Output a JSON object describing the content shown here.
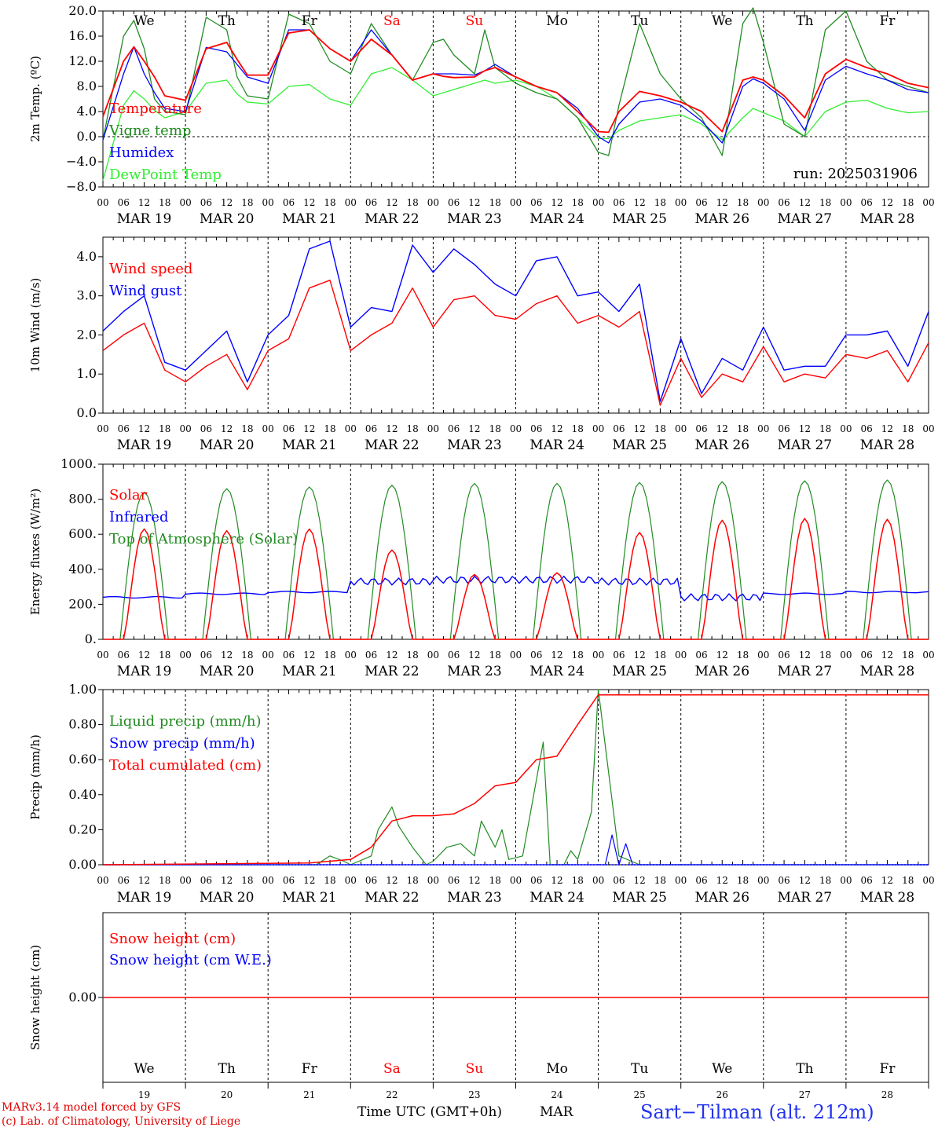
{
  "days": [
    "We",
    "Th",
    "Fr",
    "Sa",
    "Su",
    "Mo",
    "Tu",
    "We",
    "Th",
    "Fr"
  ],
  "weekend_flags": [
    false,
    false,
    false,
    true,
    true,
    false,
    false,
    false,
    false,
    false
  ],
  "dates": [
    "MAR 19",
    "MAR 20",
    "MAR 21",
    "MAR 22",
    "MAR 23",
    "MAR 24",
    "MAR 25",
    "MAR 26",
    "MAR 27",
    "MAR 28"
  ],
  "day_numbers": [
    "19",
    "20",
    "21",
    "22",
    "23",
    "24",
    "25",
    "26",
    "27",
    "28"
  ],
  "hour_labels": [
    "00",
    "06",
    "12",
    "18"
  ],
  "colors": {
    "red": "#ff0000",
    "darkgreen": "#228b22",
    "blue": "#0000ff",
    "lightgreen": "#33ee33",
    "weekend": "#ff0000"
  },
  "footer": {
    "model": "MARv3.14 model forced by GFS",
    "lab": "(c) Lab. of Climatology, University of Liege",
    "axis": "Time UTC (GMT+0h)",
    "month": "MAR",
    "station": "Sart−Tilman (alt. 212m)"
  },
  "chart_data": [
    {
      "type": "line",
      "ylabel": "2m Temp. (ºC)",
      "ylim": [
        -8,
        20
      ],
      "yticks": [
        "20.0",
        "16.0",
        "12.0",
        "8.0",
        "4.0",
        "0.0",
        "−4.0",
        "−8.0"
      ],
      "annotation": "run: 2025031906",
      "zero_line": true,
      "x_hours": [
        0,
        6,
        9,
        12,
        15,
        18,
        24,
        30,
        36,
        39,
        42,
        48,
        54,
        60,
        66,
        72,
        78,
        84,
        90,
        96,
        99,
        102,
        108,
        111,
        114,
        120,
        126,
        132,
        138,
        144,
        147,
        150,
        156,
        162,
        168,
        174,
        180,
        186,
        189,
        192,
        198,
        204,
        210,
        216,
        222,
        228,
        234,
        240
      ],
      "series": [
        {
          "name": "Temperature",
          "color": "red",
          "values": [
            3.2,
            12,
            14.3,
            12,
            9.5,
            6.5,
            5.8,
            14,
            15,
            12.3,
            9.8,
            9.8,
            16.5,
            17,
            14,
            12,
            15.5,
            13,
            9,
            10,
            9.6,
            9.4,
            9.5,
            10.5,
            11,
            9.5,
            8,
            7,
            4,
            0.8,
            0.7,
            4,
            7.2,
            6.5,
            5.5,
            4,
            0.8,
            9,
            9.5,
            9,
            6.5,
            3,
            10,
            12.3,
            11,
            10,
            8.5,
            7.8
          ]
        },
        {
          "name": "Vigne temp",
          "color": "darkgreen",
          "values": [
            -0.5,
            16,
            18.5,
            14,
            6,
            4,
            3.5,
            19,
            17,
            9.5,
            6.5,
            6,
            19.5,
            18,
            12,
            10,
            18,
            13,
            9,
            15,
            15.5,
            13,
            10,
            17,
            11,
            8.5,
            7,
            6,
            3,
            -2.5,
            -3,
            5,
            18,
            10,
            6,
            3,
            -3,
            18,
            20.5,
            15,
            2,
            0,
            17,
            20,
            12,
            9,
            8,
            7
          ]
        },
        {
          "name": "Humidex",
          "color": "blue",
          "values": [
            -0.5,
            10,
            14.3,
            10,
            7,
            4.5,
            4,
            14.2,
            13.5,
            11.5,
            9.5,
            8.5,
            17,
            17,
            14,
            12,
            17,
            13,
            9,
            10,
            10,
            10,
            9.8,
            10.5,
            11.5,
            9.5,
            8,
            7,
            4.5,
            0,
            -1,
            2,
            5.5,
            6,
            5,
            2.5,
            -1,
            8,
            9.2,
            8.5,
            6,
            1,
            9,
            11.2,
            10,
            9,
            7.5,
            7
          ]
        },
        {
          "name": "DewPoint Temp",
          "color": "lightgreen",
          "values": [
            -7,
            5,
            7.3,
            6,
            4.2,
            3,
            4,
            8.5,
            9,
            6.8,
            5.5,
            5.2,
            8,
            8.3,
            6,
            5,
            10,
            11,
            9,
            6.5,
            7,
            7.5,
            8.5,
            9,
            8.5,
            9,
            8,
            6,
            3,
            -0.3,
            -0.3,
            1,
            2.5,
            3,
            3.5,
            2,
            -0.5,
            3,
            4.5,
            3.8,
            2.5,
            0,
            4,
            5.5,
            5.8,
            4.5,
            3.8,
            4
          ]
        }
      ]
    },
    {
      "type": "line",
      "ylabel": "10m Wind (m/s)",
      "ylim": [
        0,
        4.5
      ],
      "yticks": [
        "4.0",
        "3.0",
        "2.0",
        "1.0",
        "0.0"
      ],
      "x_hours": [
        0,
        6,
        12,
        18,
        24,
        30,
        36,
        42,
        48,
        54,
        60,
        66,
        72,
        78,
        84,
        90,
        96,
        102,
        108,
        114,
        120,
        126,
        132,
        138,
        144,
        150,
        156,
        162,
        168,
        174,
        180,
        186,
        192,
        198,
        204,
        210,
        216,
        222,
        228,
        234,
        240
      ],
      "series": [
        {
          "name": "Wind speed",
          "color": "red",
          "values": [
            1.6,
            2,
            2.3,
            1.1,
            0.8,
            1.2,
            1.5,
            0.6,
            1.6,
            1.9,
            3.2,
            3.4,
            1.6,
            2,
            2.3,
            3.2,
            2.2,
            2.9,
            3,
            2.5,
            2.4,
            2.8,
            3,
            2.3,
            2.5,
            2.2,
            2.6,
            0.2,
            1.4,
            0.4,
            1,
            0.8,
            1.7,
            0.8,
            1,
            0.9,
            1.5,
            1.4,
            1.6,
            0.8,
            1.8
          ]
        },
        {
          "name": "Wind gust",
          "color": "blue",
          "values": [
            2.1,
            2.6,
            3,
            1.3,
            1.1,
            1.6,
            2.1,
            0.8,
            2,
            2.5,
            4.2,
            4.4,
            2.2,
            2.7,
            2.6,
            4.3,
            3.6,
            4.2,
            3.8,
            3.3,
            3,
            3.9,
            4,
            3,
            3.1,
            2.6,
            3.3,
            0.3,
            1.9,
            0.5,
            1.4,
            1.1,
            2.2,
            1.1,
            1.2,
            1.2,
            2,
            2,
            2.1,
            1.2,
            2.6
          ]
        }
      ]
    },
    {
      "type": "line",
      "ylabel": "Energy fluxes (W/m²)",
      "ylim": [
        0,
        1000
      ],
      "yticks": [
        "1000.",
        "800.",
        "600.",
        "400.",
        "200.",
        "0."
      ],
      "solar_peaks": [
        630,
        620,
        630,
        510,
        370,
        380,
        610,
        680,
        690,
        685
      ],
      "toa_peaks": [
        840,
        860,
        870,
        880,
        890,
        890,
        895,
        900,
        905,
        910
      ],
      "infrared_levels": [
        240,
        260,
        270,
        330,
        340,
        340,
        330,
        240,
        260,
        270
      ],
      "series": [
        {
          "name": "Solar",
          "color": "red"
        },
        {
          "name": "Infrared",
          "color": "blue"
        },
        {
          "name": "Top of Atmosphere (Solar)",
          "color": "darkgreen"
        }
      ]
    },
    {
      "type": "line",
      "ylabel": "Precip (mm/h)",
      "ylim": [
        0,
        1
      ],
      "yticks": [
        "1.00",
        "0.80",
        "0.60",
        "0.40",
        "0.20",
        "0.00"
      ],
      "x_hours": [
        0,
        60,
        66,
        72,
        78,
        84,
        90,
        96,
        102,
        108,
        114,
        120,
        126,
        132,
        138,
        144,
        150,
        156,
        162,
        168,
        174,
        180,
        240
      ],
      "series": [
        {
          "name": "Liquid precip (mm/h)",
          "color": "darkgreen",
          "x_hours": [
            0,
            62,
            66,
            70,
            72,
            78,
            80,
            84,
            86,
            90,
            94,
            96,
            100,
            104,
            108,
            110,
            114,
            116,
            118,
            122,
            128,
            130,
            134,
            136,
            138,
            142,
            144,
            150,
            156,
            240
          ],
          "values": [
            0,
            0,
            0.05,
            0.02,
            0,
            0.05,
            0.2,
            0.33,
            0.22,
            0.1,
            0,
            0.02,
            0.1,
            0.12,
            0.05,
            0.25,
            0.1,
            0.2,
            0.03,
            0.05,
            0.7,
            0,
            0,
            0.08,
            0.03,
            0.3,
            1.0,
            0.05,
            0,
            0
          ]
        },
        {
          "name": "Snow precip (mm/h)",
          "color": "blue",
          "x_hours": [
            0,
            146,
            148,
            150,
            152,
            154,
            240
          ],
          "values": [
            0,
            0,
            0.17,
            0,
            0.12,
            0,
            0
          ]
        },
        {
          "name": "Total cumulated (cm)",
          "color": "red",
          "values": [
            0,
            0.01,
            0.02,
            0.03,
            0.1,
            0.25,
            0.28,
            0.28,
            0.29,
            0.35,
            0.45,
            0.47,
            0.6,
            0.62,
            0.8,
            0.97,
            0.97,
            0.97,
            0.97,
            0.97,
            0.97,
            0.97,
            0.97
          ]
        }
      ]
    },
    {
      "type": "line",
      "ylabel": "Snow height (cm)",
      "ylim": [
        -1,
        1
      ],
      "yticks": [
        "0.00"
      ],
      "series": [
        {
          "name": "Snow height (cm)",
          "color": "red",
          "x_hours": [
            0,
            240
          ],
          "values": [
            0,
            0
          ]
        },
        {
          "name": "Snow height (cm W.E.)",
          "color": "blue"
        }
      ]
    }
  ]
}
